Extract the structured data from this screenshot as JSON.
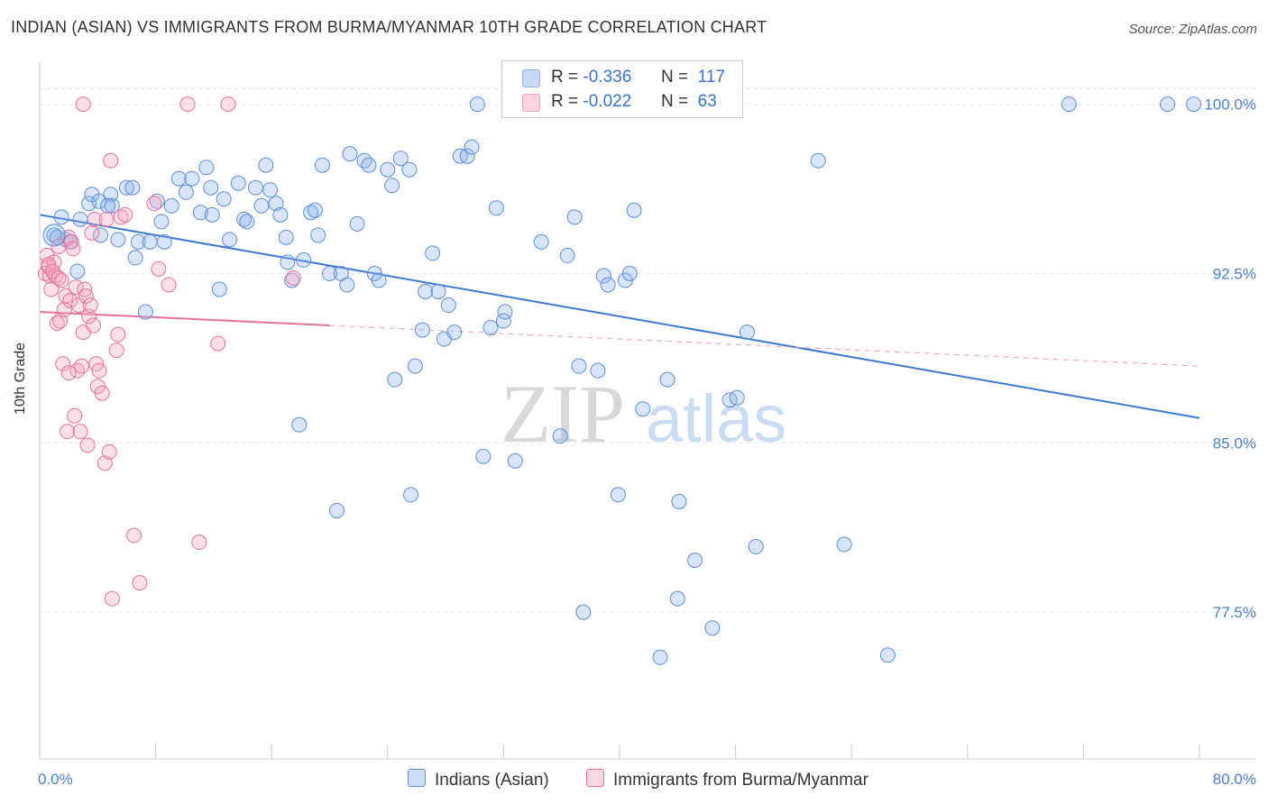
{
  "title": "INDIAN (ASIAN) VS IMMIGRANTS FROM BURMA/MYANMAR 10TH GRADE CORRELATION CHART",
  "source": "Source: ZipAtlas.com",
  "watermark": {
    "zip": "ZIP",
    "atlas": "atlas"
  },
  "legend": {
    "rows": [
      {
        "r_label": "R =",
        "r_value": "-0.336",
        "n_label": "N =",
        "n_value": "117",
        "color": "#8fb3e8"
      },
      {
        "r_label": "R =",
        "r_value": "-0.022",
        "n_label": "N =",
        "n_value": "63",
        "color": "#f4a6c0"
      }
    ]
  },
  "bottom_legend": {
    "indians": "Indians (Asian)",
    "burma": "Immigrants from Burma/Myanmar"
  },
  "chart_data": {
    "type": "scatter",
    "title": "INDIAN (ASIAN) VS IMMIGRANTS FROM BURMA/MYANMAR 10TH GRADE CORRELATION CHART",
    "xlabel": "",
    "ylabel": "10th Grade",
    "xlim": [
      0,
      80
    ],
    "ylim": [
      71.0,
      101.5
    ],
    "x_tick_labels": [
      "0.0%",
      "80.0%"
    ],
    "y_ticks": [
      77.5,
      85.0,
      92.5,
      100.0
    ],
    "y_tick_labels": [
      "77.5%",
      "85.0%",
      "92.5%",
      "100.0%"
    ],
    "grid": true,
    "legend_position": "top-center",
    "series": [
      {
        "name": "Indians (Asian)",
        "color": "#5b8fd9",
        "fill": "rgba(143,179,232,0.35)",
        "trend": {
          "x0": 0,
          "y0": 95.1,
          "x1": 80,
          "y1": 86.1,
          "dashed_from": null
        },
        "points": [
          [
            1.0,
            94.2
          ],
          [
            1.5,
            95.0
          ],
          [
            1.8,
            94.0
          ],
          [
            2.6,
            92.6
          ],
          [
            2.8,
            94.9
          ],
          [
            3.4,
            95.6
          ],
          [
            3.6,
            96.0
          ],
          [
            4.1,
            95.7
          ],
          [
            4.2,
            94.2
          ],
          [
            4.9,
            96.0
          ],
          [
            5.0,
            95.5
          ],
          [
            5.4,
            94.0
          ],
          [
            6.0,
            96.3
          ],
          [
            6.4,
            96.3
          ],
          [
            6.6,
            93.2
          ],
          [
            6.8,
            93.9
          ],
          [
            7.3,
            90.8
          ],
          [
            7.6,
            93.9
          ],
          [
            8.1,
            95.7
          ],
          [
            8.4,
            94.8
          ],
          [
            8.6,
            93.9
          ],
          [
            9.1,
            95.5
          ],
          [
            9.6,
            96.7
          ],
          [
            10.1,
            96.1
          ],
          [
            10.5,
            96.7
          ],
          [
            11.1,
            95.2
          ],
          [
            11.5,
            97.2
          ],
          [
            11.9,
            95.1
          ],
          [
            12.4,
            91.8
          ],
          [
            12.7,
            95.8
          ],
          [
            13.1,
            94.0
          ],
          [
            13.7,
            96.5
          ],
          [
            14.1,
            94.9
          ],
          [
            14.3,
            94.8
          ],
          [
            14.9,
            96.3
          ],
          [
            15.3,
            95.5
          ],
          [
            15.6,
            97.3
          ],
          [
            15.9,
            96.2
          ],
          [
            16.3,
            95.6
          ],
          [
            16.6,
            95.1
          ],
          [
            17.1,
            93.0
          ],
          [
            17.4,
            92.2
          ],
          [
            17.9,
            85.8
          ],
          [
            18.2,
            93.1
          ],
          [
            18.7,
            95.2
          ],
          [
            19.0,
            95.3
          ],
          [
            19.2,
            94.2
          ],
          [
            19.5,
            97.3
          ],
          [
            20.0,
            92.5
          ],
          [
            20.5,
            82.0
          ],
          [
            20.8,
            92.5
          ],
          [
            21.2,
            92.0
          ],
          [
            21.4,
            97.8
          ],
          [
            21.9,
            94.7
          ],
          [
            22.4,
            97.5
          ],
          [
            22.7,
            97.3
          ],
          [
            23.1,
            92.5
          ],
          [
            23.4,
            92.2
          ],
          [
            24.0,
            97.1
          ],
          [
            24.3,
            96.4
          ],
          [
            24.5,
            87.8
          ],
          [
            24.9,
            97.6
          ],
          [
            25.5,
            97.1
          ],
          [
            25.6,
            82.7
          ],
          [
            25.9,
            88.4
          ],
          [
            26.4,
            90.0
          ],
          [
            26.6,
            91.7
          ],
          [
            27.1,
            93.4
          ],
          [
            27.5,
            91.7
          ],
          [
            27.9,
            89.6
          ],
          [
            28.2,
            91.1
          ],
          [
            28.6,
            89.9
          ],
          [
            29.0,
            97.7
          ],
          [
            29.5,
            97.7
          ],
          [
            29.8,
            98.1
          ],
          [
            30.6,
            84.4
          ],
          [
            31.1,
            90.1
          ],
          [
            31.5,
            95.4
          ],
          [
            32.0,
            90.4
          ],
          [
            32.1,
            90.8
          ],
          [
            32.8,
            84.2
          ],
          [
            34.6,
            93.9
          ],
          [
            35.9,
            85.3
          ],
          [
            36.4,
            93.3
          ],
          [
            36.9,
            95.0
          ],
          [
            37.2,
            88.4
          ],
          [
            37.5,
            77.5
          ],
          [
            38.5,
            88.2
          ],
          [
            38.9,
            92.4
          ],
          [
            39.2,
            92.0
          ],
          [
            39.9,
            82.7
          ],
          [
            40.4,
            92.2
          ],
          [
            40.7,
            92.5
          ],
          [
            41.0,
            95.3
          ],
          [
            41.6,
            86.5
          ],
          [
            42.8,
            75.5
          ],
          [
            43.3,
            87.8
          ],
          [
            44.0,
            78.1
          ],
          [
            44.1,
            82.4
          ],
          [
            45.2,
            79.8
          ],
          [
            46.4,
            76.8
          ],
          [
            47.6,
            86.9
          ],
          [
            48.1,
            87.0
          ],
          [
            48.8,
            89.9
          ],
          [
            49.4,
            80.4
          ],
          [
            53.7,
            97.5
          ],
          [
            55.5,
            80.5
          ],
          [
            58.5,
            75.6
          ],
          [
            30.2,
            100.0
          ],
          [
            48.0,
            100.0
          ],
          [
            71.0,
            100.0
          ],
          [
            77.8,
            100.0
          ],
          [
            79.6,
            100.0
          ],
          [
            1.2,
            94.1
          ],
          [
            2.1,
            93.9
          ],
          [
            4.7,
            95.5
          ],
          [
            11.8,
            96.3
          ],
          [
            17.0,
            94.1
          ]
        ]
      },
      {
        "name": "Immigrants from Burma/Myanmar",
        "color": "#e8719b",
        "fill": "rgba(244,166,192,0.35)",
        "trend": {
          "x0": 0,
          "y0": 90.8,
          "x1": 80,
          "y1": 88.4,
          "solid_until": 20
        },
        "points": [
          [
            0.4,
            92.5
          ],
          [
            0.5,
            93.3
          ],
          [
            0.6,
            92.8
          ],
          [
            0.7,
            92.4
          ],
          [
            0.8,
            91.8
          ],
          [
            0.9,
            92.6
          ],
          [
            1.0,
            93.0
          ],
          [
            1.1,
            92.4
          ],
          [
            1.2,
            90.3
          ],
          [
            1.3,
            93.7
          ],
          [
            1.4,
            90.4
          ],
          [
            1.5,
            92.2
          ],
          [
            1.6,
            88.5
          ],
          [
            1.7,
            90.9
          ],
          [
            1.8,
            91.5
          ],
          [
            1.9,
            85.5
          ],
          [
            2.0,
            94.1
          ],
          [
            2.1,
            91.3
          ],
          [
            2.2,
            93.9
          ],
          [
            2.3,
            93.6
          ],
          [
            2.4,
            86.2
          ],
          [
            2.5,
            91.9
          ],
          [
            2.6,
            88.2
          ],
          [
            2.7,
            91.1
          ],
          [
            2.8,
            85.5
          ],
          [
            2.9,
            88.4
          ],
          [
            3.0,
            89.9
          ],
          [
            3.1,
            91.8
          ],
          [
            3.2,
            91.5
          ],
          [
            3.3,
            84.9
          ],
          [
            3.4,
            90.6
          ],
          [
            3.5,
            91.1
          ],
          [
            3.6,
            94.3
          ],
          [
            3.7,
            90.2
          ],
          [
            3.8,
            94.9
          ],
          [
            3.9,
            88.5
          ],
          [
            4.0,
            87.5
          ],
          [
            4.1,
            88.2
          ],
          [
            4.3,
            87.2
          ],
          [
            4.5,
            84.1
          ],
          [
            4.6,
            94.9
          ],
          [
            4.8,
            84.6
          ],
          [
            4.9,
            97.5
          ],
          [
            5.0,
            78.1
          ],
          [
            5.3,
            89.1
          ],
          [
            5.4,
            89.8
          ],
          [
            5.6,
            95.0
          ],
          [
            6.5,
            80.9
          ],
          [
            6.9,
            78.8
          ],
          [
            7.9,
            95.6
          ],
          [
            8.2,
            92.7
          ],
          [
            8.9,
            92.0
          ],
          [
            10.2,
            100.0
          ],
          [
            11.0,
            80.6
          ],
          [
            12.3,
            89.4
          ],
          [
            13.0,
            100.0
          ],
          [
            17.5,
            92.3
          ],
          [
            3.0,
            100.0
          ],
          [
            0.6,
            92.9
          ],
          [
            0.9,
            92.6
          ],
          [
            1.3,
            92.3
          ],
          [
            2.0,
            88.1
          ],
          [
            5.9,
            95.1
          ]
        ]
      }
    ]
  }
}
